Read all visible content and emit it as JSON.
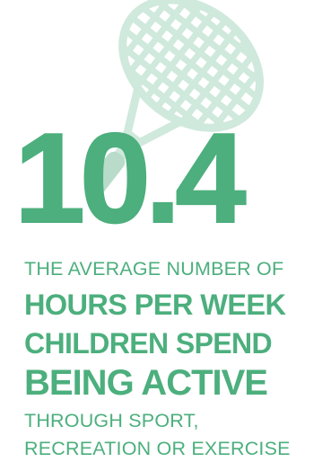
{
  "stat": {
    "value": "10.4",
    "line1": "THE AVERAGE NUMBER OF",
    "line2": "HOURS PER WEEK",
    "line3": "CHILDREN SPEND",
    "line4": "BEING ACTIVE",
    "line5": "THROUGH SPORT,",
    "line6": "RECREATION OR EXERCISE"
  },
  "icons": {
    "illustration": "tennis-racket-icon"
  },
  "colors": {
    "primary": "#4caf7d",
    "racket_light": "#cfe9dc"
  }
}
